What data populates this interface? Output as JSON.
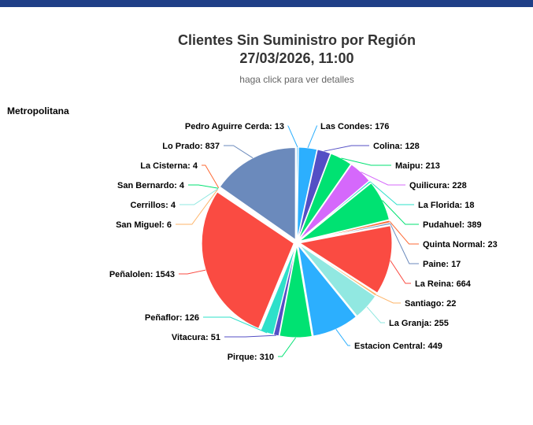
{
  "header": {
    "bar_color": "#1f3f87"
  },
  "chart_data": {
    "type": "pie",
    "title": "Clientes Sin Suministro por Región",
    "title_line2": "27/03/2026, 11:00",
    "subtitle": "haga click para ver detalles",
    "region_label": "Metropolitana",
    "slices": [
      {
        "name": "Pedro Aguirre Cerda",
        "value": 13,
        "color": "#2caffe"
      },
      {
        "name": "Las Condes",
        "value": 176,
        "color": "#2caffe"
      },
      {
        "name": "Colina",
        "value": 128,
        "color": "#544fc5"
      },
      {
        "name": "Maipu",
        "value": 213,
        "color": "#00e272"
      },
      {
        "name": "Quilicura",
        "value": 228,
        "color": "#d568fb"
      },
      {
        "name": "La Florida",
        "value": 18,
        "color": "#2ee0ca"
      },
      {
        "name": "Pudahuel",
        "value": 389,
        "color": "#00e272"
      },
      {
        "name": "Quinta Normal",
        "value": 23,
        "color": "#fe6a35"
      },
      {
        "name": "Paine",
        "value": 17,
        "color": "#6b8abc"
      },
      {
        "name": "La Reina",
        "value": 664,
        "color": "#fa4b42"
      },
      {
        "name": "Santiago",
        "value": 22,
        "color": "#feb56a"
      },
      {
        "name": "La Granja",
        "value": 255,
        "color": "#91e8e1"
      },
      {
        "name": "Estacion Central",
        "value": 449,
        "color": "#2caffe"
      },
      {
        "name": "Pirque",
        "value": 310,
        "color": "#00e272"
      },
      {
        "name": "Vitacura",
        "value": 51,
        "color": "#544fc5"
      },
      {
        "name": "Peñaflor",
        "value": 126,
        "color": "#2ee0ca"
      },
      {
        "name": "Peñalolen",
        "value": 1543,
        "color": "#fa4b42"
      },
      {
        "name": "San Miguel",
        "value": 6,
        "color": "#feb56a"
      },
      {
        "name": "Cerrillos",
        "value": 4,
        "color": "#91e8e1"
      },
      {
        "name": "San Bernardo",
        "value": 4,
        "color": "#00e272"
      },
      {
        "name": "La Cisterna",
        "value": 4,
        "color": "#fe6a35"
      },
      {
        "name": "Lo Prado",
        "value": 837,
        "color": "#6b8abc"
      }
    ]
  }
}
